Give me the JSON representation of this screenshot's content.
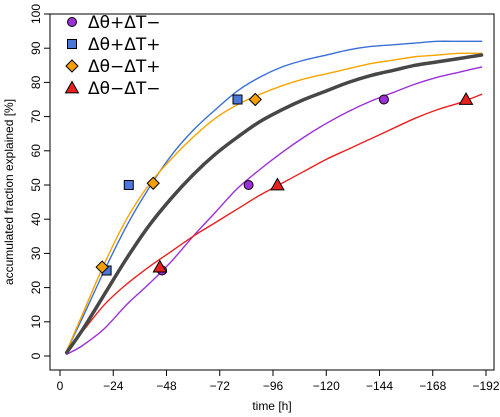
{
  "chart_data": {
    "type": "line",
    "title": "",
    "xlabel": "time [h]",
    "ylabel": "accumulated fraction explained [%]",
    "xlim": [
      0,
      192
    ],
    "ylim": [
      0,
      100
    ],
    "x_ticks": [
      0,
      24,
      48,
      72,
      96,
      120,
      144,
      168,
      192
    ],
    "x_tick_labels": [
      "0",
      "−24",
      "−48",
      "−72",
      "−96",
      "−120",
      "−144",
      "−168",
      "−192"
    ],
    "y_ticks": [
      0,
      10,
      20,
      30,
      40,
      50,
      60,
      70,
      80,
      90,
      100
    ],
    "y_tick_labels": [
      "0",
      "10",
      "20",
      "30",
      "40",
      "50",
      "60",
      "70",
      "80",
      "90",
      "100"
    ],
    "grid": false,
    "legend": "top-left",
    "series": [
      {
        "name": "Δθ+ΔT−",
        "color": "#9b30d6",
        "marker": "circle",
        "marker_fill": "#9b30d6",
        "show_in_legend": true,
        "x": [
          3,
          10,
          20,
          30,
          40,
          50,
          60,
          70,
          80,
          90,
          100,
          110,
          120,
          130,
          140,
          150,
          160,
          170,
          180,
          190
        ],
        "y": [
          0.5,
          3,
          8,
          15,
          21,
          27.5,
          35,
          42,
          49,
          54.5,
          59.5,
          64,
          68,
          71.5,
          74.5,
          77,
          79.5,
          81.5,
          83,
          84.5
        ],
        "points_x": [
          46,
          85,
          146
        ],
        "points_y": [
          25,
          50,
          75
        ]
      },
      {
        "name": "Δθ+ΔT+",
        "color": "#3a6fd6",
        "marker": "square",
        "marker_fill": "#4b78d8",
        "show_in_legend": true,
        "x": [
          3,
          10,
          20,
          30,
          40,
          50,
          60,
          70,
          80,
          90,
          100,
          110,
          120,
          130,
          140,
          150,
          160,
          170,
          180,
          190
        ],
        "y": [
          1.5,
          11,
          25,
          38,
          49,
          58.5,
          66,
          72,
          77.5,
          81.5,
          84.5,
          86.5,
          88,
          89.5,
          90.5,
          91,
          91.5,
          92,
          92,
          92
        ],
        "points_x": [
          21,
          31,
          80
        ],
        "points_y": [
          25,
          50,
          75
        ]
      },
      {
        "name": "Δθ−ΔT+",
        "color": "#f5a500",
        "marker": "diamond",
        "marker_fill": "#f5a000",
        "show_in_legend": true,
        "x": [
          3,
          10,
          20,
          30,
          40,
          50,
          60,
          70,
          80,
          90,
          100,
          110,
          120,
          130,
          140,
          150,
          160,
          170,
          180,
          190
        ],
        "y": [
          1.5,
          12,
          27,
          40,
          50,
          57.5,
          64,
          69.5,
          73.5,
          76.5,
          79,
          81,
          82.5,
          84,
          85.5,
          86.5,
          87.5,
          88,
          88.5,
          88.5
        ],
        "points_x": [
          19,
          42,
          88
        ],
        "points_y": [
          26,
          50.5,
          75
        ]
      },
      {
        "name": "Δθ−ΔT−",
        "color": "#e8211f",
        "marker": "triangle",
        "marker_fill": "#e8211f",
        "show_in_legend": true,
        "x": [
          3,
          10,
          20,
          30,
          40,
          50,
          60,
          70,
          80,
          90,
          100,
          110,
          120,
          130,
          140,
          150,
          160,
          170,
          180,
          190
        ],
        "y": [
          1.5,
          7,
          15,
          21,
          26,
          30.5,
          35,
          39,
          43,
          47,
          50.5,
          54,
          57.5,
          60.5,
          63.5,
          66.5,
          69.5,
          72,
          74,
          76.5
        ],
        "points_x": [
          45,
          98,
          183
        ],
        "points_y": [
          26,
          50,
          75
        ]
      },
      {
        "name": "",
        "color": "#474747",
        "marker": "none",
        "line_width": "thick",
        "show_in_legend": false,
        "x": [
          3,
          10,
          20,
          30,
          40,
          50,
          60,
          70,
          80,
          90,
          100,
          110,
          120,
          130,
          140,
          150,
          160,
          170,
          180,
          190
        ],
        "y": [
          1,
          7.5,
          18,
          28.5,
          38,
          46,
          53,
          59,
          64,
          68.5,
          72,
          75,
          77.5,
          80,
          82,
          83.5,
          85,
          86,
          87,
          88
        ]
      }
    ]
  }
}
